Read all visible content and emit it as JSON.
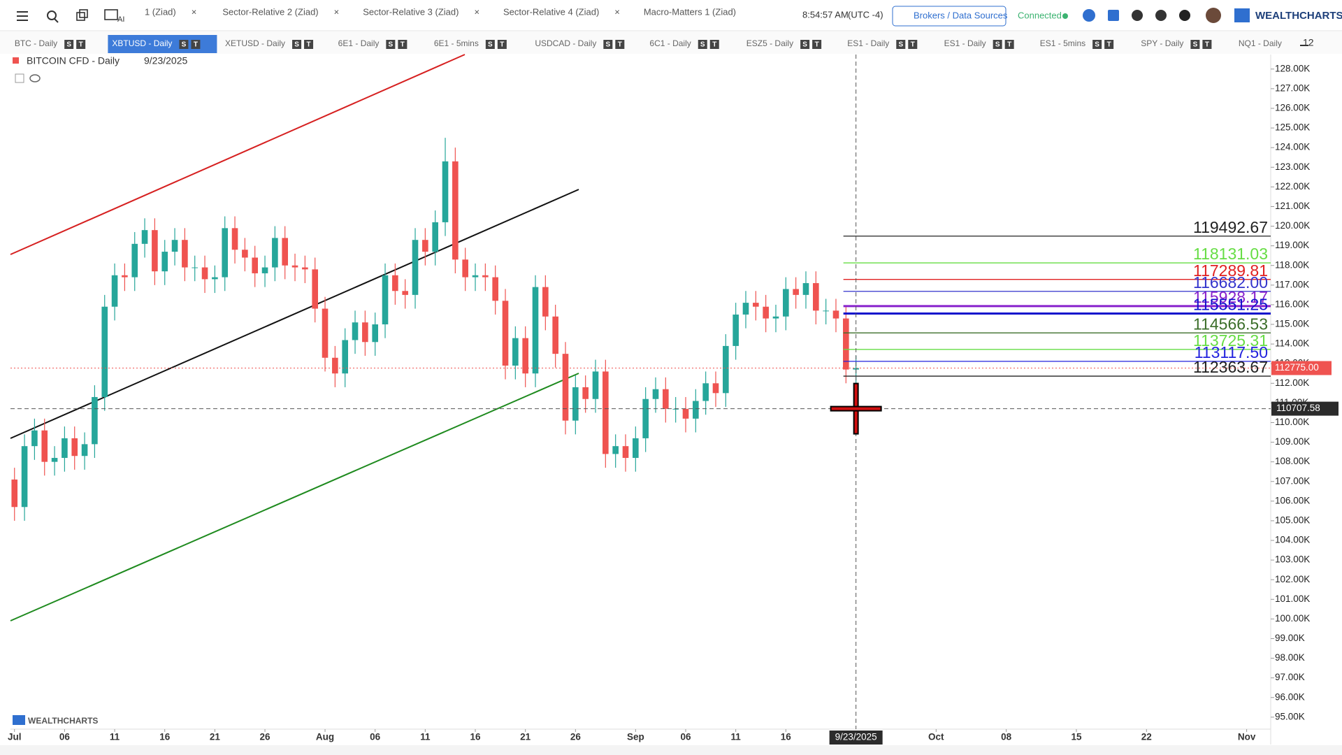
{
  "toolbar": {
    "tabs": [
      "1 (Ziad)",
      "Sector-Relative 2 (Ziad)",
      "Sector-Relative 3 (Ziad)",
      "Sector-Relative 4 (Ziad)",
      "Macro-Matters 1 (Ziad)"
    ],
    "ai": "AI",
    "time": "8:54:57 AM",
    "timezone": "(UTC -4)",
    "brokers": "Brokers / Data Sources",
    "status": "Connected",
    "logo": "WEALTHCHARTS"
  },
  "symbol_tabs": {
    "tabs": [
      "BTC - Daily",
      "XBTUSD - Daily",
      "XETUSD - Daily",
      "6E1 - Daily",
      "6E1 - 5mins",
      "USDCAD - Daily",
      "6C1 - Daily",
      "ESZ5 - Daily",
      "ES1 - Daily",
      "ES1 - Daily",
      "ES1 - 5mins",
      "SPY - Daily",
      "NQ1 - Daily"
    ],
    "badges": [
      "S",
      "T"
    ],
    "more_count": "12"
  },
  "chart_data": {
    "type": "candlestick",
    "title": "BITCOIN CFD - Daily",
    "date": "9/23/2025",
    "x": [
      0,
      1,
      2,
      3,
      4,
      5,
      6,
      7,
      8,
      9,
      10,
      11,
      12,
      13,
      14,
      15,
      16,
      17,
      18,
      19,
      20,
      21,
      22,
      23,
      24,
      25,
      26,
      27,
      28,
      29,
      30,
      31,
      32,
      33,
      34,
      35,
      36,
      37,
      38,
      39,
      40,
      41,
      42,
      43,
      44,
      45,
      46,
      47,
      48,
      49,
      50,
      51,
      52,
      53,
      54,
      55,
      56,
      57,
      58,
      59,
      60,
      61,
      62,
      63,
      64,
      65,
      66,
      67,
      68,
      69,
      70,
      71,
      72,
      73,
      74,
      75,
      76,
      77,
      78,
      79,
      80,
      81,
      82,
      83,
      84
    ],
    "open": [
      107100,
      105700,
      108800,
      109600,
      108000,
      108200,
      109200,
      108300,
      108900,
      111300,
      115900,
      117500,
      117400,
      119100,
      119800,
      117700,
      118700,
      119300,
      117900,
      117900,
      117300,
      117400,
      119900,
      118800,
      118400,
      117600,
      117900,
      119400,
      118000,
      117900,
      117800,
      115800,
      113300,
      112500,
      114200,
      115100,
      114100,
      115000,
      117500,
      116700,
      116500,
      119300,
      118700,
      120200,
      123300,
      118300,
      117400,
      117500,
      117400,
      116200,
      112900,
      114300,
      112500,
      116900,
      115400,
      113500,
      110100,
      111800,
      111200,
      112600,
      108400,
      108800,
      108200,
      109200,
      111200,
      111700,
      110700,
      110700,
      110200,
      111100,
      112000,
      111500,
      113900,
      115500,
      116100,
      115900,
      115300,
      115400,
      116800,
      116500,
      117100,
      115700,
      115700,
      115300,
      112700
    ],
    "high": [
      107700,
      109400,
      110200,
      110200,
      108800,
      109800,
      109800,
      109500,
      111900,
      116500,
      118100,
      118100,
      119700,
      120400,
      120400,
      119300,
      119900,
      119900,
      118500,
      118500,
      118000,
      120500,
      120500,
      119400,
      119000,
      118500,
      120000,
      120000,
      118600,
      118500,
      118400,
      116400,
      113900,
      114800,
      115700,
      115700,
      115600,
      118100,
      118100,
      117300,
      119900,
      119900,
      120800,
      124500,
      124000,
      118900,
      118100,
      118100,
      118000,
      116800,
      114900,
      114900,
      117500,
      117500,
      116000,
      114100,
      112400,
      112400,
      113200,
      113200,
      109400,
      109400,
      109800,
      111800,
      112300,
      112300,
      111300,
      111300,
      111700,
      112600,
      112600,
      114500,
      116100,
      116700,
      116700,
      116500,
      116000,
      117400,
      117400,
      117700,
      117700,
      116300,
      116300,
      115900,
      113400
    ],
    "low": [
      105000,
      105000,
      108100,
      107300,
      107300,
      107500,
      107600,
      107600,
      108200,
      110600,
      115200,
      116700,
      116700,
      118400,
      117000,
      117000,
      118000,
      117200,
      117200,
      116600,
      116600,
      116700,
      118100,
      117700,
      116900,
      116900,
      117200,
      117300,
      117200,
      117100,
      115100,
      112600,
      111800,
      111800,
      113500,
      113400,
      113400,
      114300,
      116000,
      115800,
      115800,
      118000,
      118000,
      119500,
      117600,
      116700,
      116700,
      116700,
      115500,
      112200,
      112200,
      111800,
      111800,
      114700,
      112800,
      109400,
      109400,
      110500,
      110500,
      107700,
      107700,
      107500,
      107500,
      108500,
      110500,
      110000,
      110000,
      109500,
      109500,
      110400,
      110800,
      110800,
      113200,
      114800,
      115200,
      114600,
      114600,
      114700,
      115800,
      115800,
      115000,
      115000,
      114600,
      112000,
      112000
    ],
    "close": [
      105700,
      108800,
      109600,
      108000,
      108200,
      109200,
      108300,
      108900,
      111300,
      115900,
      117500,
      117400,
      119100,
      119800,
      117700,
      118700,
      119300,
      117900,
      117900,
      117300,
      117400,
      119900,
      118800,
      118400,
      117600,
      117900,
      119400,
      118000,
      117900,
      117800,
      115800,
      113300,
      112500,
      114200,
      115100,
      114100,
      115000,
      117500,
      116700,
      116500,
      119300,
      118700,
      120200,
      123300,
      118300,
      117400,
      117500,
      117400,
      116200,
      112900,
      114300,
      112500,
      116900,
      115400,
      113500,
      110100,
      111800,
      111200,
      112600,
      108400,
      108800,
      108200,
      109200,
      111200,
      111700,
      110700,
      110700,
      110200,
      111100,
      112000,
      111500,
      113900,
      115500,
      116100,
      115900,
      115300,
      115400,
      116800,
      116500,
      117100,
      115700,
      115700,
      115300,
      112700,
      112775
    ],
    "up_color": "#26a69a",
    "down_color": "#ef5350",
    "xlim": [
      -0.4,
      125.4
    ],
    "xticks": [
      {
        "value": 0,
        "label": "Jul"
      },
      {
        "value": 5,
        "label": "06"
      },
      {
        "value": 10,
        "label": "11"
      },
      {
        "value": 15,
        "label": "16"
      },
      {
        "value": 20,
        "label": "21"
      },
      {
        "value": 25,
        "label": "26"
      },
      {
        "value": 31,
        "label": "Aug"
      },
      {
        "value": 36,
        "label": "06"
      },
      {
        "value": 41,
        "label": "11"
      },
      {
        "value": 46,
        "label": "16"
      },
      {
        "value": 51,
        "label": "21"
      },
      {
        "value": 56,
        "label": "26"
      },
      {
        "value": 62,
        "label": "Sep"
      },
      {
        "value": 67,
        "label": "06"
      },
      {
        "value": 72,
        "label": "11"
      },
      {
        "value": 77,
        "label": "16"
      },
      {
        "value": 92,
        "label": "Oct"
      },
      {
        "value": 99,
        "label": "08"
      },
      {
        "value": 106,
        "label": "15"
      },
      {
        "value": 113,
        "label": "22"
      },
      {
        "value": 123,
        "label": "Nov"
      }
    ],
    "ylim": [
      94390,
      128740
    ],
    "yticks": [
      {
        "value": 95000,
        "label": "95.00K"
      },
      {
        "value": 96000,
        "label": "96.00K"
      },
      {
        "value": 97000,
        "label": "97.00K"
      },
      {
        "value": 98000,
        "label": "98.00K"
      },
      {
        "value": 99000,
        "label": "99.00K"
      },
      {
        "value": 100000,
        "label": "100.00K"
      },
      {
        "value": 101000,
        "label": "101.00K"
      },
      {
        "value": 102000,
        "label": "102.00K"
      },
      {
        "value": 103000,
        "label": "103.00K"
      },
      {
        "value": 104000,
        "label": "104.00K"
      },
      {
        "value": 105000,
        "label": "105.00K"
      },
      {
        "value": 106000,
        "label": "106.00K"
      },
      {
        "value": 107000,
        "label": "107.00K"
      },
      {
        "value": 108000,
        "label": "108.00K"
      },
      {
        "value": 109000,
        "label": "109.00K"
      },
      {
        "value": 110000,
        "label": "110.00K"
      },
      {
        "value": 111000,
        "label": "111.00K"
      },
      {
        "value": 112000,
        "label": "112.00K"
      },
      {
        "value": 113000,
        "label": "113.00K"
      },
      {
        "value": 114000,
        "label": "114.00K"
      },
      {
        "value": 115000,
        "label": "115.00K"
      },
      {
        "value": 116000,
        "label": "116.00K"
      },
      {
        "value": 117000,
        "label": "117.00K"
      },
      {
        "value": 118000,
        "label": "118.00K"
      },
      {
        "value": 119000,
        "label": "119.00K"
      },
      {
        "value": 120000,
        "label": "120.00K"
      },
      {
        "value": 121000,
        "label": "121.00K"
      },
      {
        "value": 122000,
        "label": "122.00K"
      },
      {
        "value": 123000,
        "label": "123.00K"
      },
      {
        "value": 124000,
        "label": "124.00K"
      },
      {
        "value": 125000,
        "label": "125.00K"
      },
      {
        "value": 126000,
        "label": "126.00K"
      },
      {
        "value": 127000,
        "label": "127.00K"
      },
      {
        "value": 128000,
        "label": "128.00K"
      }
    ],
    "levels": {
      "values": [
        119492.67,
        118131.03,
        117289.81,
        116682,
        115928.17,
        115551.25,
        114566.53,
        113725.31,
        113117.5,
        112363.67
      ],
      "value_labels": [
        "119492.67",
        "118131.03",
        "117289.81",
        "116682.00",
        "115928.17",
        "115551.25",
        "114566.53",
        "113725.31",
        "113117.50",
        "112363.67"
      ],
      "colors": [
        "#222222",
        "#66dd44",
        "#e02020",
        "#3333cc",
        "#8822cc",
        "#1111cc",
        "#3b6e2a",
        "#66dd44",
        "#2222dd",
        "#222222"
      ]
    },
    "last_price": {
      "value": 112775,
      "label": "112775.00"
    },
    "crosshair": {
      "x": 84,
      "x_label": "9/23/2025",
      "y": 110707.58
    },
    "watermark": "WEALTHCHARTS"
  }
}
